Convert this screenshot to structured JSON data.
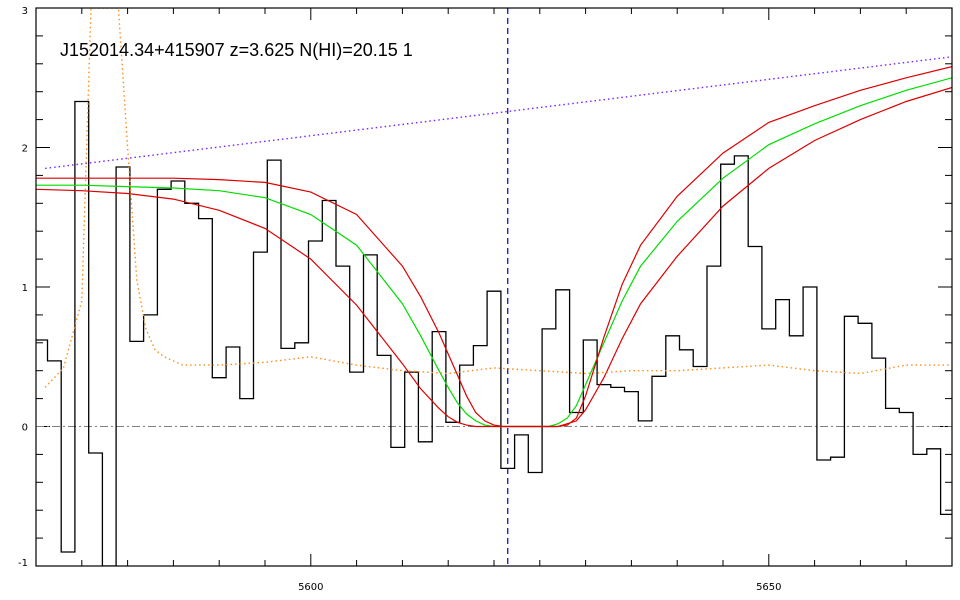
{
  "chart_data": {
    "type": "line",
    "title": "J152014.34+415907 z=3.625 N(HI)=20.15 1",
    "xlabel": "",
    "ylabel": "",
    "xlim": [
      5570,
      5670
    ],
    "ylim": [
      -1,
      3
    ],
    "x_ticks": [
      5600,
      5650
    ],
    "x_tick_labels": [
      "5600",
      "5650"
    ],
    "y_ticks": [
      -1,
      0,
      1,
      2,
      3
    ],
    "y_tick_labels": [
      "-1",
      "0",
      "1",
      "2",
      "3"
    ],
    "x_minor_step": 5,
    "y_minor_step": 0.2,
    "grid": false,
    "legend": "none",
    "zero_line": {
      "y": 0,
      "color": "#808080",
      "style": "dash-dot"
    },
    "center_marker": {
      "x": 5621.5,
      "color": "#0000cc",
      "style": "dashed"
    },
    "series": [
      {
        "kind": "step",
        "color": "#000000",
        "x": [
          5570.5,
          5572.0,
          5573.5,
          5575.0,
          5576.5,
          5578.0,
          5579.5,
          5581.0,
          5582.5,
          5584.0,
          5585.5,
          5587.0,
          5588.5,
          5590.0,
          5591.5,
          5593.0,
          5594.5,
          5596.0,
          5597.5,
          5599.0,
          5600.5,
          5602.0,
          5603.5,
          5605.0,
          5606.5,
          5608.0,
          5609.5,
          5611.0,
          5612.5,
          5614.0,
          5615.5,
          5617.0,
          5618.5,
          5620.0,
          5621.5,
          5623.0,
          5624.5,
          5626.0,
          5627.5,
          5629.0,
          5630.5,
          5632.0,
          5633.5,
          5635.0,
          5636.5,
          5638.0,
          5639.5,
          5641.0,
          5642.5,
          5644.0,
          5645.5,
          5647.0,
          5648.5,
          5650.0,
          5651.5,
          5653.0,
          5654.5,
          5656.0,
          5657.5,
          5659.0,
          5660.5,
          5662.0,
          5663.5,
          5665.0,
          5666.5,
          5668.0,
          5669.5
        ],
        "y": [
          0.62,
          0.47,
          -0.9,
          2.33,
          -0.19,
          -1.0,
          1.86,
          0.61,
          0.8,
          1.7,
          1.76,
          1.6,
          1.49,
          0.35,
          0.57,
          0.2,
          1.25,
          1.91,
          0.56,
          0.6,
          1.33,
          1.62,
          1.15,
          0.39,
          1.23,
          0.51,
          -0.15,
          0.39,
          -0.11,
          0.68,
          0.03,
          0.44,
          0.58,
          0.97,
          -0.3,
          -0.06,
          -0.33,
          0.7,
          0.98,
          0.1,
          0.62,
          0.3,
          0.28,
          0.25,
          0.04,
          0.36,
          0.65,
          0.55,
          0.43,
          1.15,
          1.88,
          1.94,
          1.29,
          0.7,
          0.91,
          0.65,
          1.0,
          -0.24,
          -0.22,
          0.79,
          0.74,
          0.49,
          0.13,
          0.1,
          -0.2,
          -0.16,
          -0.63
        ]
      },
      {
        "kind": "line",
        "name": "",
        "color": "#00dd00",
        "x": [
          5570,
          5575,
          5580,
          5585,
          5590,
          5595,
          5600,
          5605,
          5610,
          5612,
          5614,
          5615,
          5616,
          5617,
          5618,
          5619,
          5620,
          5621,
          5622,
          5623,
          5624,
          5625,
          5626,
          5627,
          5628,
          5629,
          5630,
          5632,
          5634,
          5636,
          5640,
          5645,
          5650,
          5655,
          5660,
          5665,
          5670
        ],
        "y": [
          1.73,
          1.73,
          1.72,
          1.71,
          1.69,
          1.64,
          1.52,
          1.3,
          0.88,
          0.65,
          0.4,
          0.28,
          0.17,
          0.09,
          0.04,
          0.01,
          0.0,
          0.0,
          0.0,
          0.0,
          0.0,
          0.0,
          0.0,
          0.02,
          0.06,
          0.15,
          0.3,
          0.6,
          0.9,
          1.15,
          1.47,
          1.78,
          2.02,
          2.17,
          2.3,
          2.41,
          2.5
        ]
      },
      {
        "kind": "line",
        "name": "",
        "color": "#dd0000",
        "x": [
          5570,
          5575,
          5580,
          5585,
          5590,
          5595,
          5600,
          5605,
          5610,
          5612,
          5614,
          5615,
          5616,
          5617,
          5618,
          5619,
          5620,
          5621,
          5622,
          5623,
          5624,
          5625,
          5626,
          5627,
          5628,
          5629,
          5630,
          5632,
          5634,
          5636,
          5640,
          5645,
          5650,
          5655,
          5660,
          5665,
          5670
        ],
        "y": [
          1.78,
          1.78,
          1.78,
          1.78,
          1.77,
          1.75,
          1.68,
          1.52,
          1.15,
          0.93,
          0.67,
          0.52,
          0.37,
          0.22,
          0.1,
          0.04,
          0.01,
          0.0,
          0.0,
          0.0,
          0.0,
          0.0,
          0.0,
          0.0,
          0.01,
          0.06,
          0.22,
          0.64,
          1.02,
          1.3,
          1.65,
          1.96,
          2.18,
          2.3,
          2.41,
          2.5,
          2.58
        ]
      },
      {
        "kind": "line",
        "name": "",
        "color": "#dd0000",
        "x": [
          5570,
          5575,
          5580,
          5585,
          5590,
          5595,
          5600,
          5605,
          5610,
          5612,
          5614,
          5615,
          5616,
          5617,
          5618,
          5619,
          5620,
          5621,
          5622,
          5623,
          5624,
          5625,
          5626,
          5627,
          5628,
          5629,
          5630,
          5632,
          5634,
          5636,
          5640,
          5645,
          5650,
          5655,
          5660,
          5665,
          5670
        ],
        "y": [
          1.7,
          1.69,
          1.67,
          1.63,
          1.55,
          1.42,
          1.2,
          0.87,
          0.45,
          0.27,
          0.13,
          0.07,
          0.03,
          0.01,
          0.0,
          0.0,
          0.0,
          0.0,
          0.0,
          0.0,
          0.0,
          0.0,
          0.0,
          0.0,
          0.02,
          0.04,
          0.12,
          0.35,
          0.63,
          0.88,
          1.22,
          1.58,
          1.85,
          2.05,
          2.2,
          2.33,
          2.43
        ]
      },
      {
        "kind": "dotted",
        "name": "",
        "color": "#7722ff",
        "x": [
          5571,
          5670
        ],
        "y": [
          1.85,
          2.65
        ]
      },
      {
        "kind": "dotted",
        "name": "",
        "color": "#ff8c1a",
        "x": [
          5571,
          5573,
          5575,
          5576,
          5577,
          5578,
          5579,
          5580,
          5581,
          5582,
          5583,
          5584,
          5586,
          5588,
          5590,
          5595,
          5600,
          5605,
          5610,
          5615,
          5620,
          5625,
          5630,
          5635,
          5640,
          5645,
          5650,
          5655,
          5660,
          5665,
          5670
        ],
        "y": [
          0.28,
          0.42,
          0.9,
          3.0,
          3.0,
          3.0,
          3.0,
          2.0,
          1.05,
          0.7,
          0.55,
          0.5,
          0.44,
          0.44,
          0.44,
          0.46,
          0.5,
          0.44,
          0.4,
          0.38,
          0.42,
          0.4,
          0.38,
          0.4,
          0.4,
          0.42,
          0.44,
          0.4,
          0.38,
          0.44,
          0.44
        ]
      }
    ]
  }
}
